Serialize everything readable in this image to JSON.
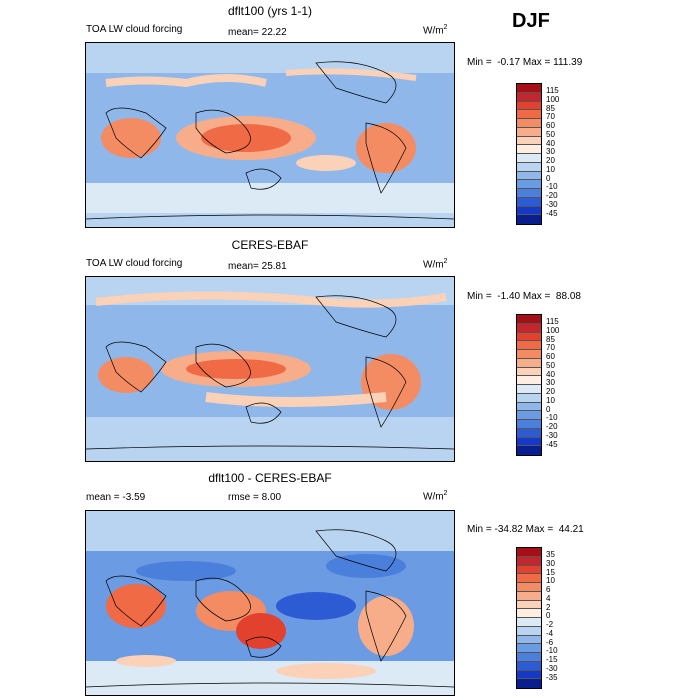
{
  "season": "DJF",
  "panels": [
    {
      "title": "dflt100 (yrs 1-1)",
      "label_left": "TOA LW cloud forcing",
      "label_mid": "mean=  22.22",
      "unit": "W/m",
      "unit_sup": "2",
      "minmax": "Min =  -0.17 Max = 111.39",
      "levels": [
        "115",
        "100",
        "85",
        "70",
        "60",
        "50",
        "40",
        "30",
        "20",
        "10",
        "0",
        "-10",
        "-20",
        "-30",
        "-45"
      ],
      "colors": [
        "#a50f15",
        "#c1272d",
        "#e2412d",
        "#ef6a45",
        "#f48c63",
        "#f8ad8a",
        "#fbd1b7",
        "#fdeee3",
        "#dceaf6",
        "#b9d4f1",
        "#8fb7ea",
        "#6b9be3",
        "#4a7fdc",
        "#2c5bd4",
        "#1438c8",
        "#0a1f8f"
      ]
    },
    {
      "title": "CERES-EBAF",
      "label_left": "TOA LW cloud forcing",
      "label_mid": "mean=  25.81",
      "unit": "W/m",
      "unit_sup": "2",
      "minmax": "Min =  -1.40 Max =  88.08",
      "levels": [
        "115",
        "100",
        "85",
        "70",
        "60",
        "50",
        "40",
        "30",
        "20",
        "10",
        "0",
        "-10",
        "-20",
        "-30",
        "-45"
      ],
      "colors": [
        "#a50f15",
        "#c1272d",
        "#e2412d",
        "#ef6a45",
        "#f48c63",
        "#f8ad8a",
        "#fbd1b7",
        "#fdeee3",
        "#dceaf6",
        "#b9d4f1",
        "#8fb7ea",
        "#6b9be3",
        "#4a7fdc",
        "#2c5bd4",
        "#1438c8",
        "#0a1f8f"
      ]
    },
    {
      "title": "dflt100 - CERES-EBAF",
      "label_left": "mean =  -3.59",
      "label_mid": "rmse =   8.00",
      "unit": "W/m",
      "unit_sup": "2",
      "minmax": "Min = -34.82 Max =  44.21",
      "levels": [
        "35",
        "30",
        "15",
        "10",
        "6",
        "4",
        "2",
        "0",
        "-2",
        "-4",
        "-6",
        "-10",
        "-15",
        "-30",
        "-35"
      ],
      "colors": [
        "#a50f15",
        "#c1272d",
        "#e2412d",
        "#ef6a45",
        "#f48c63",
        "#f8ad8a",
        "#fbd1b7",
        "#fdeee3",
        "#dceaf6",
        "#b9d4f1",
        "#8fb7ea",
        "#6b9be3",
        "#4a7fdc",
        "#2c5bd4",
        "#1438c8",
        "#0a1f8f"
      ]
    }
  ]
}
